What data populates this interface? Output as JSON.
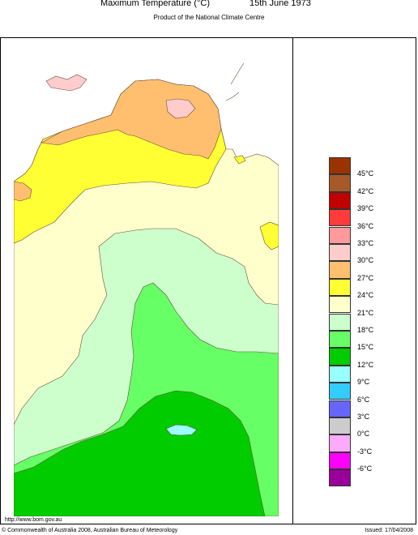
{
  "title": {
    "name": "Maximum Temperature (°C)",
    "date": "15th June 1973"
  },
  "subtitle": "Product of the National Climate Centre",
  "legend": {
    "items": [
      {
        "label": "45°C",
        "color": "#993300"
      },
      {
        "label": "42°C",
        "color": "#a65a2a"
      },
      {
        "label": "39°C",
        "color": "#c10000"
      },
      {
        "label": "36°C",
        "color": "#ff3b3b"
      },
      {
        "label": "33°C",
        "color": "#ff9a9a"
      },
      {
        "label": "30°C",
        "color": "#ffcccc"
      },
      {
        "label": "27°C",
        "color": "#ffbf6f"
      },
      {
        "label": "24°C",
        "color": "#ffff33"
      },
      {
        "label": "21°C",
        "color": "#ffffcc"
      },
      {
        "label": "18°C",
        "color": "#ccffcc"
      },
      {
        "label": "15°C",
        "color": "#66ff66"
      },
      {
        "label": "12°C",
        "color": "#00cc00"
      },
      {
        "label": "9°C",
        "color": "#99ffff"
      },
      {
        "label": "6°C",
        "color": "#33ccff"
      },
      {
        "label": "3°C",
        "color": "#6666ff"
      },
      {
        "label": "0°C",
        "color": "#cccccc"
      },
      {
        "label": "-3°C",
        "color": "#ffaaff"
      },
      {
        "label": "-6°C",
        "color": "#ff00ff"
      },
      {
        "label": "",
        "color": "#990099"
      }
    ]
  },
  "footer": {
    "url": "http://www.bom.gov.au",
    "copyright": "© Commonwealth of Australia 2008, Australian Bureau of Meteorology",
    "issued": "Issued: 17/04/2008"
  }
}
